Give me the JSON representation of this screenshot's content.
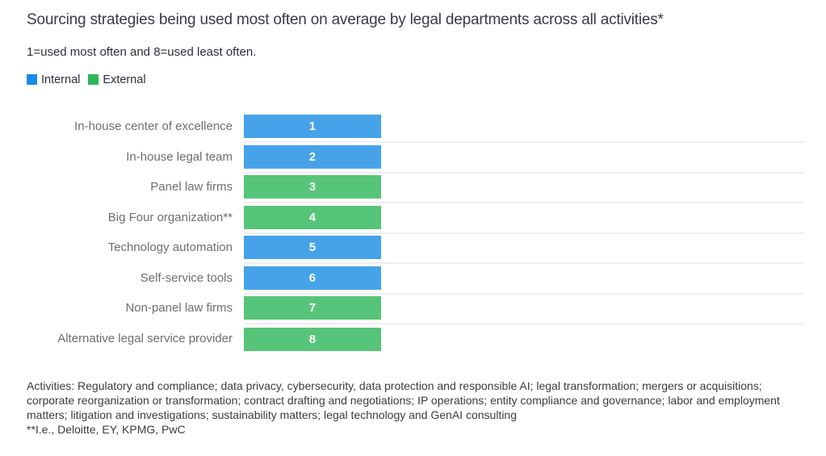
{
  "chart_data": {
    "type": "bar",
    "orientation": "horizontal",
    "title": "Sourcing strategies being used most often on average by legal departments across all activities*",
    "subtitle": "1=used most often and 8=used least often.",
    "legend": [
      {
        "label": "Internal",
        "color": "#188ce5"
      },
      {
        "label": "External",
        "color": "#2db757"
      }
    ],
    "categories": [
      "In-house center of excellence",
      "In-house legal team",
      "Panel law firms",
      "Big Four organization**",
      "Technology automation",
      "Self-service tools",
      "Non-panel law firms",
      "Alternative legal service provider"
    ],
    "values": [
      1,
      2,
      3,
      4,
      5,
      6,
      7,
      8
    ],
    "rows": [
      {
        "label": "In-house center of excellence",
        "value": "1",
        "series": "Internal"
      },
      {
        "label": "In-house legal team",
        "value": "2",
        "series": "Internal"
      },
      {
        "label": "Panel law firms",
        "value": "3",
        "series": "External"
      },
      {
        "label": "Big Four organization**",
        "value": "4",
        "series": "External"
      },
      {
        "label": "Technology automation",
        "value": "5",
        "series": "Internal"
      },
      {
        "label": "Self-service tools",
        "value": "6",
        "series": "Internal"
      },
      {
        "label": "Non-panel law firms",
        "value": "7",
        "series": "External"
      },
      {
        "label": "Alternative legal service provider",
        "value": "8",
        "series": "External"
      }
    ],
    "bar_fill_colors": {
      "Internal": "#46a3ea",
      "External": "#57c579"
    },
    "layout": {
      "bars_equal_length": true,
      "value_label_position": "inside-center",
      "grid": "row-separators-only",
      "legend_position": "top-left"
    },
    "footnote_activities": "Activities: Regulatory and compliance; data privacy, cybersecurity, data protection and responsible AI; legal transformation; mergers or acquisitions; corporate reorganization or transformation; contract drafting and negotiations; IP operations; entity compliance and governance; labor and employment matters; litigation and investigations; sustainability matters; legal technology and GenAI consulting",
    "footnote_big_four": "**I.e., Deloitte, EY, KPMG, PwC"
  }
}
